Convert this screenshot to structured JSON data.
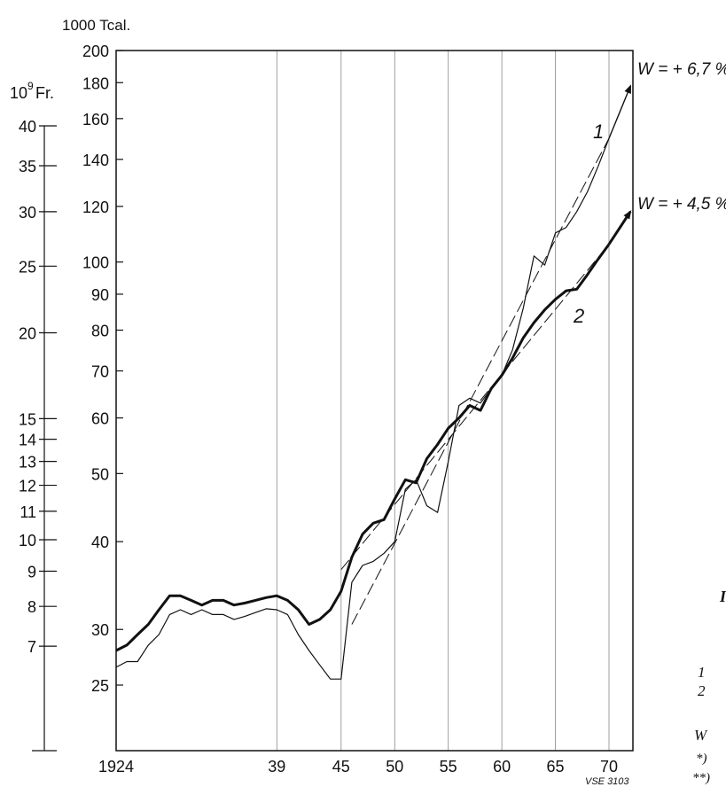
{
  "chart_data": {
    "type": "line",
    "right_axis_unit": "1000 Tcal.",
    "left_axis_unit_base": "10",
    "left_axis_unit_exp": "9",
    "left_axis_unit_suffix": "Fr.",
    "right_axis_scale": "log",
    "left_axis_scale": "log",
    "right_ylim": [
      20,
      200
    ],
    "left_ylim": [
      5,
      40
    ],
    "right_ticks": [
      {
        "v": 200,
        "label": "200"
      },
      {
        "v": 180,
        "label": "180"
      },
      {
        "v": 160,
        "label": "160"
      },
      {
        "v": 140,
        "label": "140"
      },
      {
        "v": 120,
        "label": "120"
      },
      {
        "v": 100,
        "label": "100"
      },
      {
        "v": 90,
        "label": "90"
      },
      {
        "v": 80,
        "label": "80"
      },
      {
        "v": 70,
        "label": "70"
      },
      {
        "v": 60,
        "label": "60"
      },
      {
        "v": 50,
        "label": "50"
      },
      {
        "v": 40,
        "label": "40"
      },
      {
        "v": 30,
        "label": "30"
      },
      {
        "v": 25,
        "label": "25"
      }
    ],
    "left_ticks": [
      {
        "v": 40,
        "label": "40"
      },
      {
        "v": 35,
        "label": "35"
      },
      {
        "v": 30,
        "label": "30"
      },
      {
        "v": 25,
        "label": "25"
      },
      {
        "v": 20,
        "label": "20"
      },
      {
        "v": 15,
        "label": "15"
      },
      {
        "v": 14,
        "label": "14"
      },
      {
        "v": 13,
        "label": "13"
      },
      {
        "v": 12,
        "label": "12"
      },
      {
        "v": 11,
        "label": "11"
      },
      {
        "v": 10,
        "label": "10"
      },
      {
        "v": 9,
        "label": "9"
      },
      {
        "v": 8,
        "label": "8"
      },
      {
        "v": 7,
        "label": "7"
      }
    ],
    "xlim": [
      1924,
      1972
    ],
    "x_ticks": [
      {
        "v": 1924,
        "label": "1924"
      },
      {
        "v": 1939,
        "label": "39"
      },
      {
        "v": 1945,
        "label": "45"
      },
      {
        "v": 1950,
        "label": "50"
      },
      {
        "v": 1955,
        "label": "55"
      },
      {
        "v": 1960,
        "label": "60"
      },
      {
        "v": 1965,
        "label": "65"
      },
      {
        "v": 1970,
        "label": "70"
      }
    ],
    "grid_x": [
      1939,
      1945,
      1950,
      1955,
      1960,
      1965,
      1970
    ],
    "grid": true,
    "series": [
      {
        "name": "1",
        "axis": "right",
        "weight": "thin",
        "x": [
          1924,
          1925,
          1926,
          1927,
          1928,
          1929,
          1930,
          1931,
          1932,
          1933,
          1934,
          1935,
          1936,
          1937,
          1938,
          1939,
          1940,
          1941,
          1942,
          1943,
          1944,
          1945,
          1946,
          1947,
          1948,
          1949,
          1950,
          1951,
          1952,
          1953,
          1954,
          1955,
          1956,
          1957,
          1958,
          1959,
          1960,
          1961,
          1962,
          1963,
          1964,
          1965,
          1966,
          1967,
          1968,
          1969,
          1970
        ],
        "y": [
          26.5,
          27,
          27,
          28.5,
          29.5,
          31.5,
          32,
          31.5,
          32,
          31.5,
          31.5,
          31,
          31.3,
          31.7,
          32.1,
          32,
          31.5,
          29.5,
          28,
          26.7,
          25.5,
          25.5,
          35,
          37,
          37.5,
          38.5,
          40,
          47.5,
          49,
          45,
          44,
          52,
          62.5,
          64,
          63,
          66,
          69,
          75,
          86,
          102,
          99,
          110,
          112,
          118,
          126,
          137,
          150
        ]
      },
      {
        "name": "2",
        "axis": "right",
        "weight": "thick",
        "x": [
          1924,
          1925,
          1926,
          1927,
          1928,
          1929,
          1930,
          1931,
          1932,
          1933,
          1934,
          1935,
          1936,
          1937,
          1938,
          1939,
          1940,
          1941,
          1942,
          1943,
          1944,
          1945,
          1946,
          1947,
          1948,
          1949,
          1950,
          1951,
          1952,
          1953,
          1954,
          1955,
          1956,
          1957,
          1958,
          1959,
          1960,
          1961,
          1962,
          1963,
          1964,
          1965,
          1966,
          1967,
          1968,
          1969,
          1970
        ],
        "y": [
          28,
          28.5,
          29.5,
          30.5,
          32,
          33.5,
          33.5,
          33,
          32.5,
          33,
          33,
          32.5,
          32.7,
          33,
          33.3,
          33.5,
          33,
          32,
          30.5,
          31,
          32,
          34,
          38,
          41,
          42.5,
          43,
          46,
          49,
          48.5,
          52.5,
          55,
          58,
          60,
          62.5,
          61.5,
          66,
          69,
          73,
          78,
          82,
          85.5,
          88.5,
          91,
          91.5,
          96,
          101,
          106
        ]
      },
      {
        "name": "trend-1",
        "axis": "right",
        "weight": "dashed",
        "x": [
          1946,
          1970
        ],
        "y": [
          30.5,
          150
        ]
      },
      {
        "name": "trend-2",
        "axis": "right",
        "weight": "dashed",
        "x": [
          1945,
          1970
        ],
        "y": [
          36.5,
          106
        ]
      },
      {
        "name": "arrow-1",
        "axis": "right",
        "weight": "arrow",
        "x": [
          1970,
          1972
        ],
        "y": [
          150,
          178
        ]
      },
      {
        "name": "arrow-2",
        "axis": "right",
        "weight": "arrow",
        "x": [
          1970,
          1972
        ],
        "y": [
          106,
          118
        ]
      }
    ],
    "annotations": [
      {
        "text": "W = + 6,7 %"
      },
      {
        "text": "W = + 4,5 %"
      },
      {
        "text": "1"
      },
      {
        "text": "2"
      },
      {
        "text": "VSE 3103"
      }
    ],
    "margin_fragments": [
      "I",
      "1",
      "2",
      "W",
      "*)",
      "**)"
    ]
  }
}
